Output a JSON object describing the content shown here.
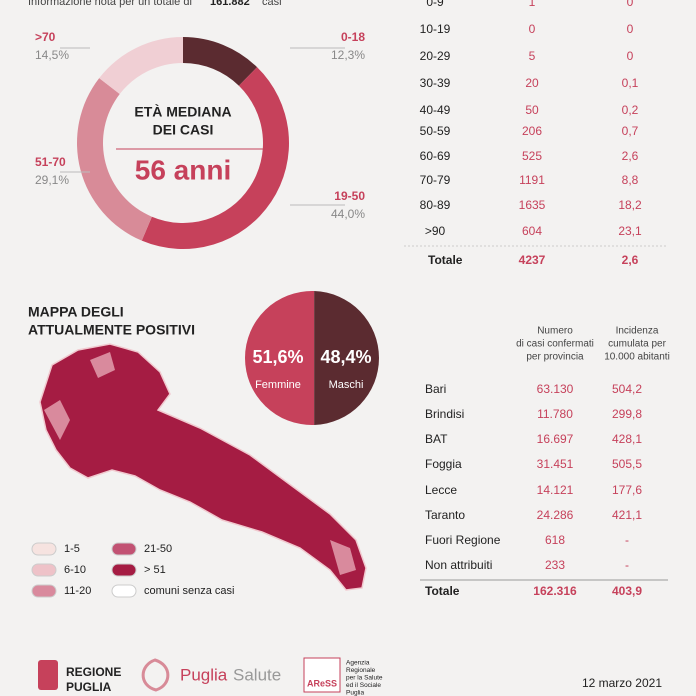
{
  "header": {
    "note": "Informazione nota per un totale di",
    "total": "161.882",
    "suffix": "casi"
  },
  "age_donut": {
    "center_title": [
      "ETÀ MEDIANA",
      "DEI CASI"
    ],
    "median": "56 anni",
    "segments": [
      {
        "label": "0-18",
        "value": 12.3,
        "value_label": "12,3%",
        "color": "#5b2b30"
      },
      {
        "label": "19-50",
        "value": 44.0,
        "value_label": "44,0%",
        "color": "#c6415b"
      },
      {
        "label": "51-70",
        "value": 29.1,
        "value_label": "29,1%",
        "color": "#d88b98"
      },
      {
        "label": ">70",
        "value": 14.5,
        "value_label": "14,5%",
        "color": "#f0cfd4"
      }
    ]
  },
  "deaths_table": {
    "rows": [
      [
        "0-9",
        "1",
        "0"
      ],
      [
        "10-19",
        "0",
        "0"
      ],
      [
        "20-29",
        "5",
        "0"
      ],
      [
        "30-39",
        "20",
        "0,1"
      ],
      [
        "40-49",
        "50",
        "0,2"
      ],
      [
        "50-59",
        "206",
        "0,7"
      ],
      [
        "60-69",
        "525",
        "2,6"
      ],
      [
        "70-79",
        "1191",
        "8,8"
      ],
      [
        "80-89",
        "1635",
        "18,2"
      ],
      [
        ">90",
        "604",
        "23,1"
      ]
    ],
    "total": [
      "Totale",
      "4237",
      "2,6"
    ]
  },
  "map": {
    "title": [
      "MAPPA DEGLI",
      "ATTUALMENTE POSITIVI"
    ],
    "legend": [
      {
        "label": "1-5",
        "color": "#f6e3e0"
      },
      {
        "label": "6-10",
        "color": "#eec2c8"
      },
      {
        "label": "11-20",
        "color": "#d98a9d"
      },
      {
        "label": "21-50",
        "color": "#c25273"
      },
      {
        "label": "> 51",
        "color": "#a51c43"
      },
      {
        "label": "comuni senza casi",
        "color": "#ffffff"
      }
    ]
  },
  "gender": [
    {
      "label": "Femmine",
      "value": 51.6,
      "value_label": "51,6%",
      "color": "#c6415b"
    },
    {
      "label": "Maschi",
      "value": 48.4,
      "value_label": "48,4%",
      "color": "#5b2b30"
    }
  ],
  "province_table": {
    "headers": [
      [
        "Numero",
        "di casi confermati",
        "per provincia"
      ],
      [
        "Incidenza",
        "cumulata per",
        "10.000 abitanti"
      ]
    ],
    "rows": [
      [
        "Bari",
        "63.130",
        "504,2"
      ],
      [
        "Brindisi",
        "11.780",
        "299,8"
      ],
      [
        "BAT",
        "16.697",
        "428,1"
      ],
      [
        "Foggia",
        "31.451",
        "505,5"
      ],
      [
        "Lecce",
        "14.121",
        "177,6"
      ],
      [
        "Taranto",
        "24.286",
        "421,1"
      ],
      [
        "Fuori Regione",
        "618",
        "-"
      ],
      [
        "Non attribuiti",
        "233",
        "-"
      ]
    ],
    "total": [
      "Totale",
      "162.316",
      "403,9"
    ]
  },
  "footer": {
    "regione": [
      "REGIONE",
      "PUGLIA"
    ],
    "puglia": "Puglia",
    "salute": "Salute",
    "aress": "AReSS",
    "agency": [
      "Agenzia",
      "Regionale",
      "per la Salute",
      "ed il Sociale",
      "Puglia"
    ],
    "date": "12 marzo 2021"
  }
}
